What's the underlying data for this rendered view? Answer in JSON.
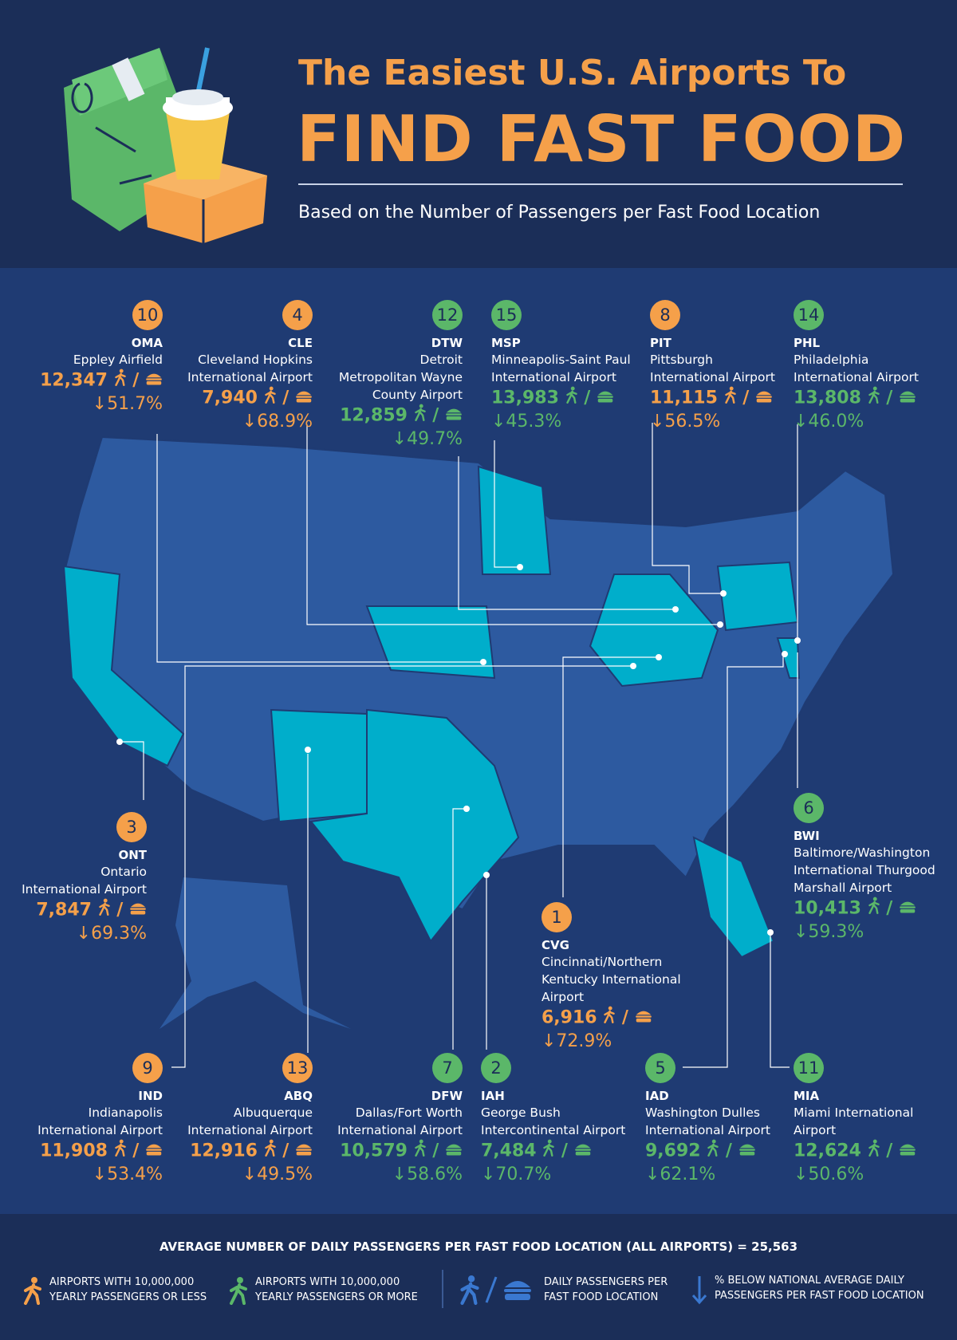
{
  "header": {
    "title_line1": "The Easiest U.S. Airports To",
    "title_line2": "FIND FAST FOOD",
    "subtitle": "Based on the Number of Passengers per Fast Food Location"
  },
  "colors": {
    "background": "#1b2e58",
    "map_bg": "#1f3b73",
    "state": "#2d5aa0",
    "highlight_state": "#00aecb",
    "small_airport": "#f5a04a",
    "large_airport": "#5bb769"
  },
  "airports": [
    {
      "rank": "10",
      "code": "OMA",
      "name": [
        "Eppley Airfield"
      ],
      "passengers": "12,347",
      "pct": "↓51.7%",
      "group": "small"
    },
    {
      "rank": "4",
      "code": "CLE",
      "name": [
        "Cleveland Hopkins",
        "International Airport"
      ],
      "passengers": "7,940",
      "pct": "↓68.9%",
      "group": "small"
    },
    {
      "rank": "12",
      "code": "DTW",
      "name": [
        "Detroit",
        "Metropolitan Wayne",
        "County Airport"
      ],
      "passengers": "12,859",
      "pct": "↓49.7%",
      "group": "large"
    },
    {
      "rank": "15",
      "code": "MSP",
      "name": [
        "Minneapolis-Saint Paul",
        "International Airport"
      ],
      "passengers": "13,983",
      "pct": "↓45.3%",
      "group": "large"
    },
    {
      "rank": "8",
      "code": "PIT",
      "name": [
        "Pittsburgh",
        "International Airport"
      ],
      "passengers": "11,115",
      "pct": "↓56.5%",
      "group": "small"
    },
    {
      "rank": "14",
      "code": "PHL",
      "name": [
        "Philadelphia",
        "International Airport"
      ],
      "passengers": "13,808",
      "pct": "↓46.0%",
      "group": "large"
    },
    {
      "rank": "3",
      "code": "ONT",
      "name": [
        "Ontario",
        "International Airport"
      ],
      "passengers": "7,847",
      "pct": "↓69.3%",
      "group": "small"
    },
    {
      "rank": "6",
      "code": "BWI",
      "name": [
        "Baltimore/Washington",
        "International Thurgood",
        "Marshall Airport"
      ],
      "passengers": "10,413",
      "pct": "↓59.3%",
      "group": "large"
    },
    {
      "rank": "1",
      "code": "CVG",
      "name": [
        "Cincinnati/Northern",
        "Kentucky International",
        "Airport"
      ],
      "passengers": "6,916",
      "pct": "↓72.9%",
      "group": "small"
    },
    {
      "rank": "9",
      "code": "IND",
      "name": [
        "Indianapolis",
        "International Airport"
      ],
      "passengers": "11,908",
      "pct": "↓53.4%",
      "group": "small"
    },
    {
      "rank": "13",
      "code": "ABQ",
      "name": [
        "Albuquerque",
        "International Airport"
      ],
      "passengers": "12,916",
      "pct": "↓49.5%",
      "group": "small"
    },
    {
      "rank": "7",
      "code": "DFW",
      "name": [
        "Dallas/Fort Worth",
        "International Airport"
      ],
      "passengers": "10,579",
      "pct": "↓58.6%",
      "group": "large"
    },
    {
      "rank": "2",
      "code": "IAH",
      "name": [
        "George Bush",
        "Intercontinental Airport"
      ],
      "passengers": "7,484",
      "pct": "↓70.7%",
      "group": "large"
    },
    {
      "rank": "5",
      "code": "IAD",
      "name": [
        "Washington Dulles",
        "International Airport"
      ],
      "passengers": "9,692",
      "pct": "↓62.1%",
      "group": "large"
    },
    {
      "rank": "11",
      "code": "MIA",
      "name": [
        "Miami International",
        "Airport"
      ],
      "passengers": "12,624",
      "pct": "↓50.6%",
      "group": "large"
    }
  ],
  "footer": {
    "average_text": "AVERAGE NUMBER OF DAILY PASSENGERS PER FAST FOOD LOCATION (ALL AIRPORTS) = 25,563",
    "legend_small": [
      "AIRPORTS WITH 10,000,000",
      "YEARLY PASSENGERS OR LESS"
    ],
    "legend_large": [
      "AIRPORTS WITH 10,000,000",
      "YEARLY PASSENGERS OR MORE"
    ],
    "legend_ratio": [
      "DAILY PASSENGERS PER",
      "FAST FOOD LOCATION"
    ],
    "legend_pct": [
      "% BELOW NATIONAL AVERAGE DAILY",
      "PASSENGERS PER FAST FOOD LOCATION"
    ]
  },
  "icons": {
    "walker": "walking-person-icon",
    "burger": "burger-icon",
    "down_arrow": "down-arrow-icon"
  }
}
